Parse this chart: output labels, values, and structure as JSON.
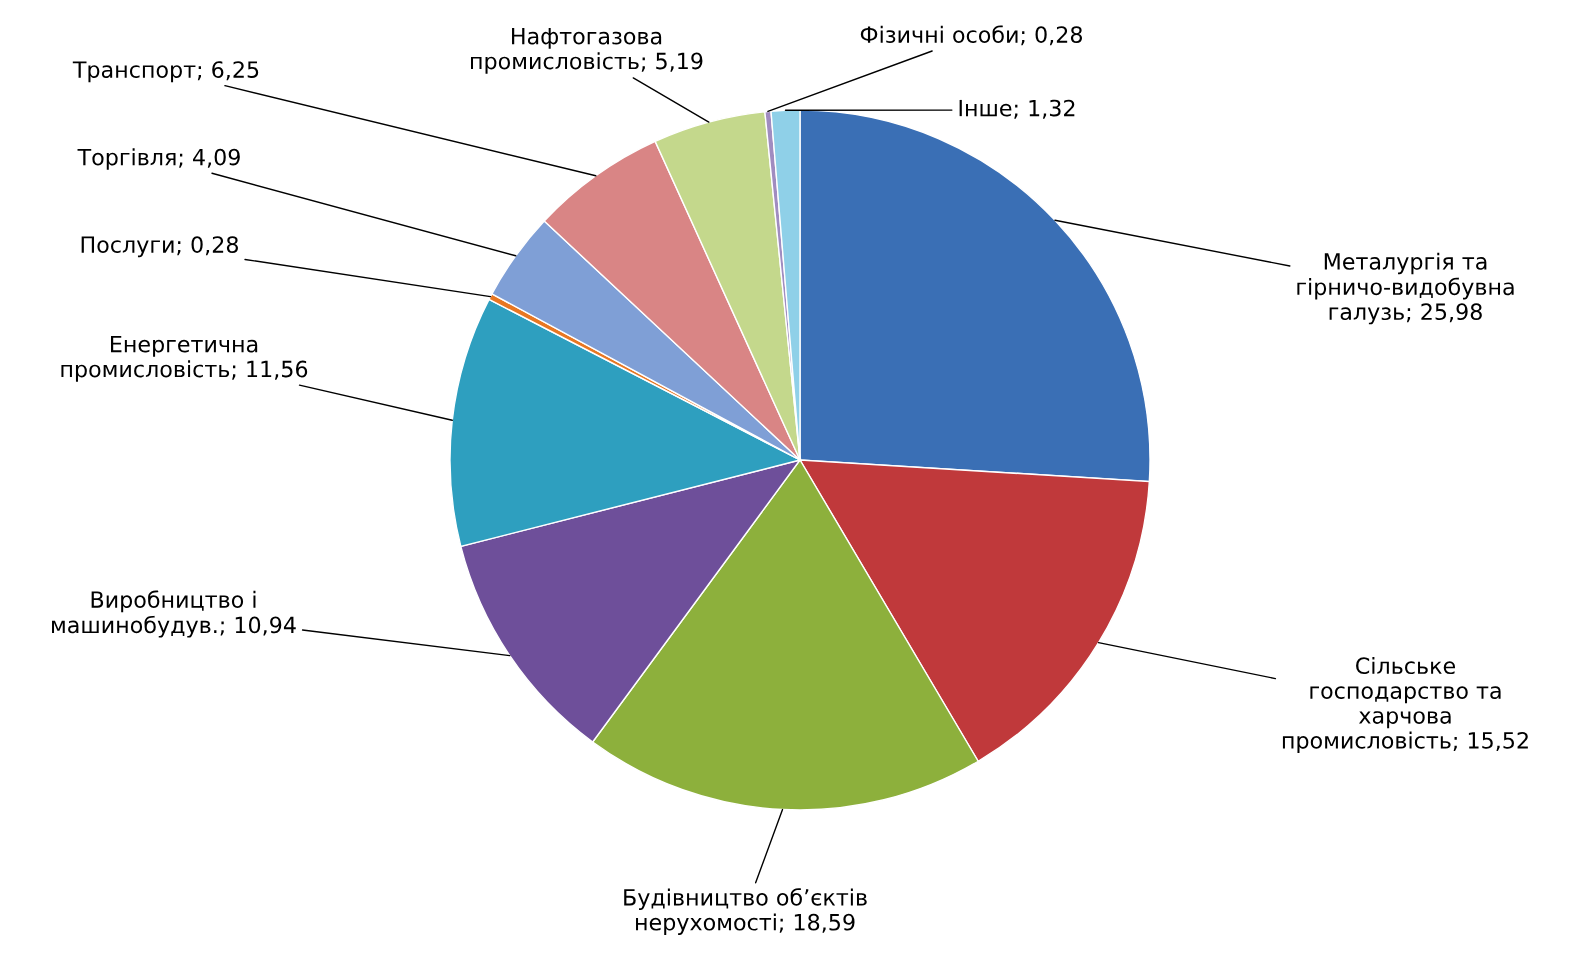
{
  "chart_data": {
    "type": "pie",
    "categories": [
      "Металургія та\nгірничо-видобувна\nгалузь",
      "Сільське\nгосподарство та\nхарчова\nпромисловість",
      "Будівництво об’єктів\nнерухомості",
      "Виробництво і\nмашинобудув.",
      "Енергетична\nпромисловість",
      "Послуги",
      "Торгівля",
      "Транспорт",
      "Нафтогазова\nпромисловість",
      "Фізичні особи",
      "Інше"
    ],
    "values": [
      25.98,
      15.52,
      18.59,
      10.94,
      11.56,
      0.28,
      4.09,
      6.25,
      5.19,
      0.28,
      1.32
    ],
    "value_labels": [
      "25,98",
      "15,52",
      "18,59",
      "10,94",
      "11,56",
      "0,28",
      "4,09",
      "6,25",
      "5,19",
      "0,28",
      "1,32"
    ],
    "colors": [
      "#3a6fb5",
      "#c0393b",
      "#8db03c",
      "#6e4f9a",
      "#2e9fbf",
      "#e87722",
      "#7f9fd6",
      "#d98585",
      "#c4d88c",
      "#a08cc0",
      "#8fd0e8"
    ],
    "legend": false
  }
}
